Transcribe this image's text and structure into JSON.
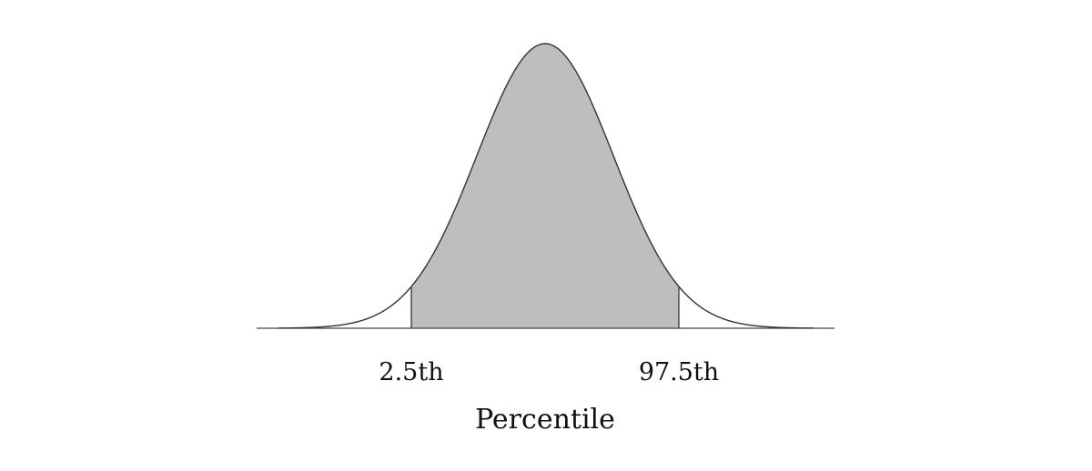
{
  "chart_data": {
    "type": "area",
    "distribution": "normal",
    "x_ticks": [
      {
        "label": "2.5th",
        "value": 2.5
      },
      {
        "label": "97.5th",
        "value": 97.5
      }
    ],
    "shaded_interval": [
      2.5,
      97.5
    ],
    "xlabel": "Percentile",
    "ylabel": "",
    "title": "",
    "grid": false,
    "legend": "none",
    "colors": {
      "fill": "#bebebe",
      "curve": "#333333",
      "axis": "#444444"
    }
  }
}
